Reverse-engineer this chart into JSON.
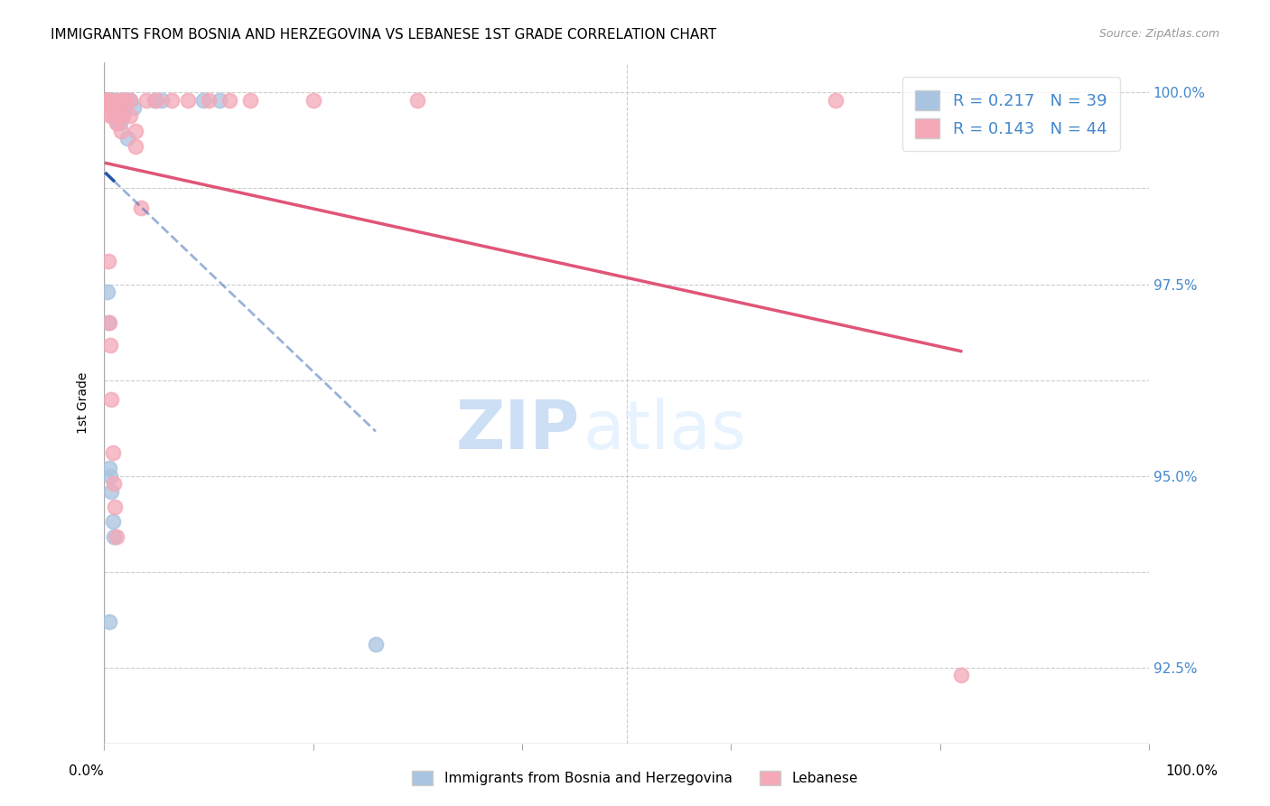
{
  "title": "IMMIGRANTS FROM BOSNIA AND HERZEGOVINA VS LEBANESE 1ST GRADE CORRELATION CHART",
  "source": "Source: ZipAtlas.com",
  "ylabel": "1st Grade",
  "xlim": [
    0.0,
    1.0
  ],
  "ylim": [
    0.915,
    1.004
  ],
  "ytick_vals": [
    0.925,
    0.9375,
    0.95,
    0.9625,
    0.975,
    0.9875,
    1.0
  ],
  "ytick_labels_right": [
    "92.5%",
    "",
    "95.0%",
    "",
    "97.5%",
    "",
    "100.0%"
  ],
  "grid_color": "#cccccc",
  "bg_color": "#ffffff",
  "bosnia_color": "#a8c4e0",
  "lebanese_color": "#f4a8b8",
  "bosnia_line_color": "#2255aa",
  "lebanese_line_color": "#e05577",
  "bosnia_R": 0.217,
  "bosnia_N": 39,
  "lebanese_R": 0.143,
  "lebanese_N": 44,
  "legend_label1": "Immigrants from Bosnia and Herzegovina",
  "legend_label2": "Lebanese",
  "watermark_zip": "ZIP",
  "watermark_atlas": "atlas",
  "bosnia_x": [
    0.002,
    0.003,
    0.003,
    0.004,
    0.005,
    0.005,
    0.006,
    0.006,
    0.007,
    0.007,
    0.008,
    0.008,
    0.009,
    0.009,
    0.01,
    0.01,
    0.011,
    0.012,
    0.013,
    0.015,
    0.016,
    0.018,
    0.02,
    0.022,
    0.025,
    0.028,
    0.003,
    0.004,
    0.005,
    0.006,
    0.007,
    0.008,
    0.009,
    0.048,
    0.055,
    0.095,
    0.11,
    0.005,
    0.26
  ],
  "bosnia_y": [
    0.999,
    0.999,
    0.999,
    0.998,
    0.999,
    0.999,
    0.999,
    0.998,
    0.999,
    0.998,
    0.999,
    0.997,
    0.999,
    0.998,
    0.997,
    0.997,
    0.998,
    0.997,
    0.996,
    0.996,
    0.999,
    0.997,
    0.999,
    0.994,
    0.999,
    0.998,
    0.974,
    0.97,
    0.951,
    0.95,
    0.948,
    0.944,
    0.942,
    0.999,
    0.999,
    0.999,
    0.999,
    0.931,
    0.928
  ],
  "lebanese_x": [
    0.002,
    0.003,
    0.003,
    0.004,
    0.005,
    0.005,
    0.006,
    0.006,
    0.007,
    0.008,
    0.009,
    0.01,
    0.011,
    0.012,
    0.014,
    0.016,
    0.018,
    0.02,
    0.025,
    0.03,
    0.004,
    0.005,
    0.006,
    0.007,
    0.008,
    0.009,
    0.01,
    0.012,
    0.015,
    0.02,
    0.025,
    0.03,
    0.035,
    0.04,
    0.05,
    0.065,
    0.08,
    0.1,
    0.12,
    0.14,
    0.2,
    0.3,
    0.7,
    0.82
  ],
  "lebanese_y": [
    0.999,
    0.999,
    0.998,
    0.999,
    0.998,
    0.999,
    0.998,
    0.997,
    0.999,
    0.998,
    0.997,
    0.998,
    0.997,
    0.996,
    0.998,
    0.995,
    0.997,
    0.999,
    0.997,
    0.995,
    0.978,
    0.97,
    0.967,
    0.96,
    0.953,
    0.949,
    0.946,
    0.942,
    0.999,
    0.999,
    0.999,
    0.993,
    0.985,
    0.999,
    0.999,
    0.999,
    0.999,
    0.999,
    0.999,
    0.999,
    0.999,
    0.999,
    0.999,
    0.924
  ]
}
